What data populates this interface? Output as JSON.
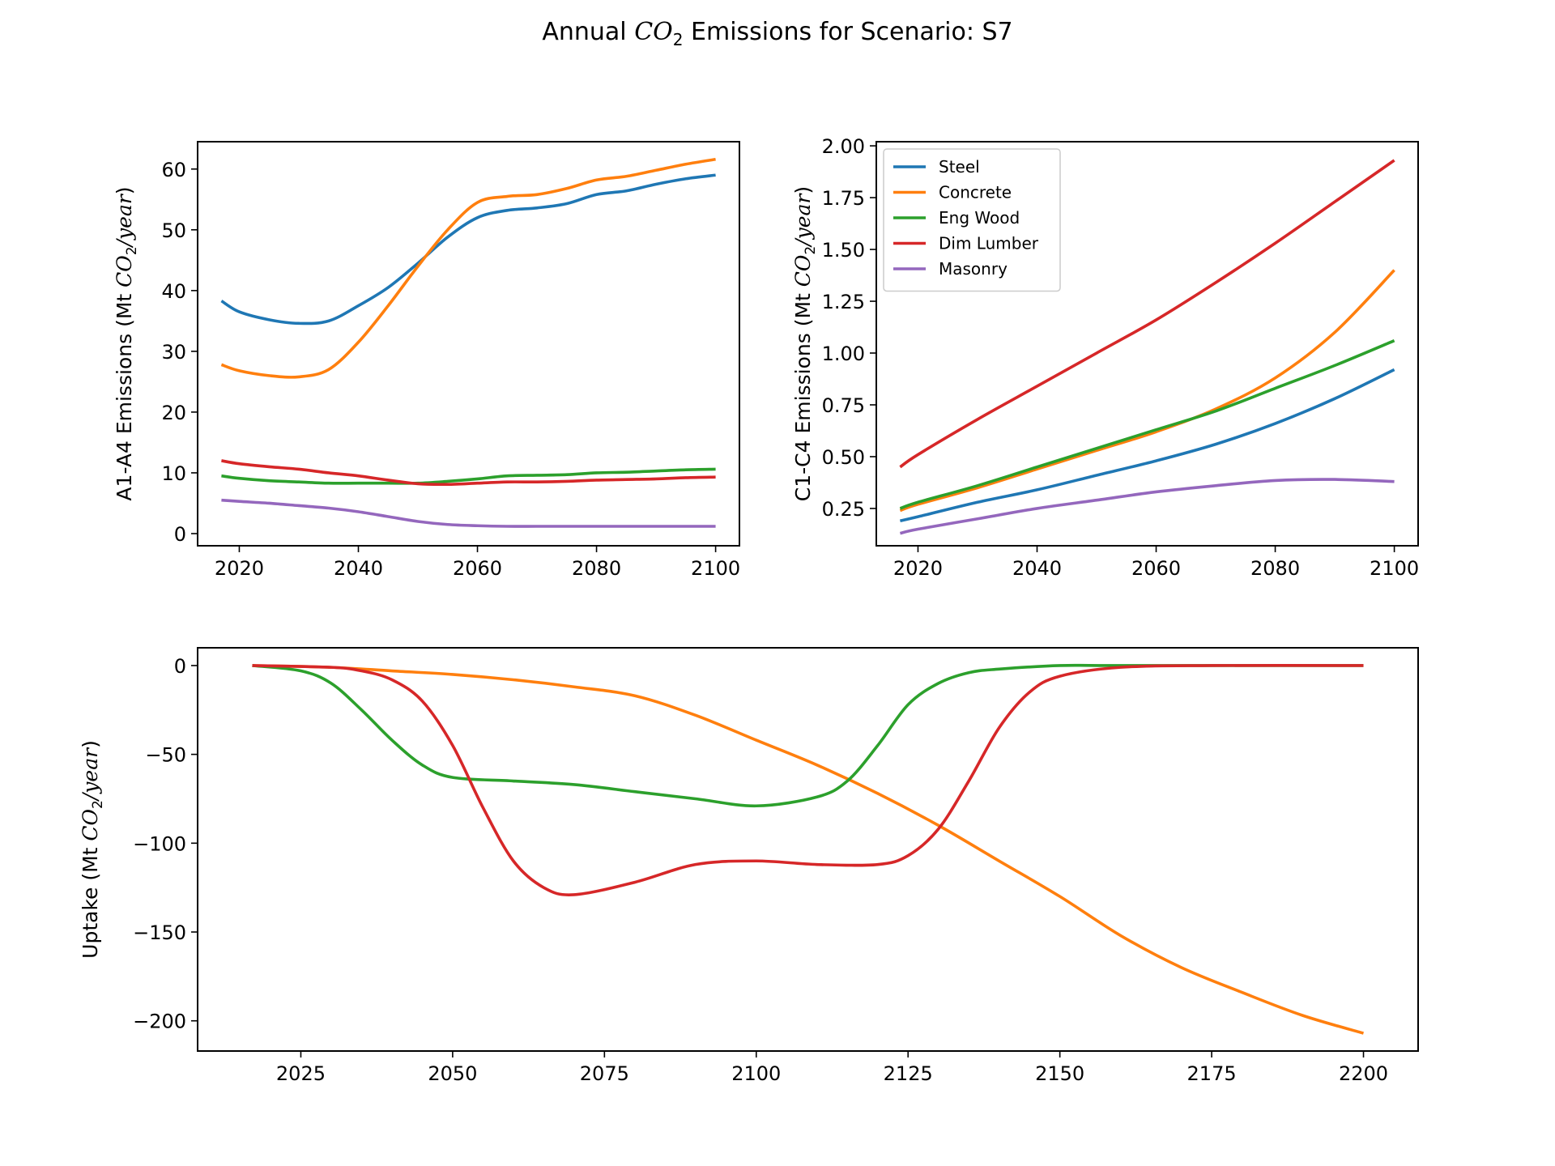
{
  "figure": {
    "title_prefix": "Annual ",
    "title_formula": "CO",
    "title_sub": "2",
    "title_suffix": " Emissions for Scenario: S7"
  },
  "colors": {
    "Steel": "#1f77b4",
    "Concrete": "#ff7f0e",
    "Eng Wood": "#2ca02c",
    "Dim Lumber": "#d62728",
    "Masonry": "#9467bd"
  },
  "chart_data": [
    {
      "type": "line",
      "ylabel": "A1-A4 Emissions (Mt CO2/year)",
      "xlim": [
        2013,
        2104
      ],
      "ylim": [
        -2,
        64.5
      ],
      "xticks": [
        2020,
        2040,
        2060,
        2080,
        2100
      ],
      "yticks": [
        0,
        10,
        20,
        30,
        40,
        50,
        60
      ],
      "ytick_labels": [
        "0",
        "10",
        "20",
        "30",
        "40",
        "50",
        "60"
      ],
      "legend": null,
      "series": [
        {
          "name": "Steel",
          "x": [
            2017,
            2020,
            2025,
            2030,
            2035,
            2040,
            2045,
            2050,
            2055,
            2060,
            2065,
            2070,
            2075,
            2080,
            2085,
            2090,
            2095,
            2100
          ],
          "y": [
            38.3,
            36.5,
            35.2,
            34.6,
            35.0,
            37.5,
            40.5,
            44.5,
            48.8,
            52.0,
            53.2,
            53.6,
            54.3,
            55.8,
            56.4,
            57.5,
            58.4,
            59.0
          ]
        },
        {
          "name": "Concrete",
          "x": [
            2017,
            2020,
            2025,
            2030,
            2035,
            2040,
            2045,
            2050,
            2055,
            2060,
            2065,
            2070,
            2075,
            2080,
            2085,
            2090,
            2095,
            2100
          ],
          "y": [
            27.8,
            26.8,
            26.0,
            25.8,
            27.0,
            31.5,
            37.5,
            44.0,
            50.0,
            54.5,
            55.5,
            55.8,
            56.8,
            58.2,
            58.8,
            59.8,
            60.8,
            61.6
          ]
        },
        {
          "name": "Eng Wood",
          "x": [
            2017,
            2020,
            2025,
            2030,
            2035,
            2040,
            2045,
            2050,
            2055,
            2060,
            2065,
            2070,
            2075,
            2080,
            2085,
            2090,
            2095,
            2100
          ],
          "y": [
            9.5,
            9.1,
            8.7,
            8.5,
            8.3,
            8.3,
            8.3,
            8.3,
            8.6,
            9.0,
            9.5,
            9.6,
            9.7,
            10.0,
            10.1,
            10.3,
            10.5,
            10.6
          ]
        },
        {
          "name": "Dim Lumber",
          "x": [
            2017,
            2020,
            2025,
            2030,
            2035,
            2040,
            2045,
            2050,
            2055,
            2060,
            2065,
            2070,
            2075,
            2080,
            2085,
            2090,
            2095,
            2100
          ],
          "y": [
            12.0,
            11.5,
            11.0,
            10.6,
            10.0,
            9.5,
            8.8,
            8.2,
            8.1,
            8.3,
            8.5,
            8.5,
            8.6,
            8.8,
            8.9,
            9.0,
            9.2,
            9.3
          ]
        },
        {
          "name": "Masonry",
          "x": [
            2017,
            2020,
            2025,
            2030,
            2035,
            2040,
            2045,
            2050,
            2055,
            2060,
            2065,
            2070,
            2075,
            2080,
            2085,
            2090,
            2095,
            2100
          ],
          "y": [
            5.5,
            5.3,
            5.0,
            4.6,
            4.2,
            3.6,
            2.8,
            2.0,
            1.5,
            1.3,
            1.2,
            1.2,
            1.2,
            1.2,
            1.2,
            1.2,
            1.2,
            1.2
          ]
        }
      ]
    },
    {
      "type": "line",
      "ylabel": "C1-C4 Emissions (Mt CO2/year)",
      "xlim": [
        2013,
        2104
      ],
      "ylim": [
        0.07,
        2.02
      ],
      "xticks": [
        2020,
        2040,
        2060,
        2080,
        2100
      ],
      "yticks": [
        0.25,
        0.5,
        0.75,
        1.0,
        1.25,
        1.5,
        1.75,
        2.0
      ],
      "ytick_labels": [
        "0.25",
        "0.50",
        "0.75",
        "1.00",
        "1.25",
        "1.50",
        "1.75",
        "2.00"
      ],
      "legend": "top-left",
      "series": [
        {
          "name": "Steel",
          "x": [
            2017,
            2020,
            2030,
            2040,
            2050,
            2060,
            2070,
            2080,
            2090,
            2100
          ],
          "y": [
            0.19,
            0.21,
            0.28,
            0.34,
            0.41,
            0.48,
            0.56,
            0.66,
            0.78,
            0.92
          ]
        },
        {
          "name": "Concrete",
          "x": [
            2017,
            2020,
            2030,
            2040,
            2050,
            2060,
            2070,
            2080,
            2090,
            2100
          ],
          "y": [
            0.24,
            0.27,
            0.35,
            0.44,
            0.53,
            0.62,
            0.73,
            0.88,
            1.1,
            1.4
          ]
        },
        {
          "name": "Eng Wood",
          "x": [
            2017,
            2020,
            2030,
            2040,
            2050,
            2060,
            2070,
            2080,
            2090,
            2100
          ],
          "y": [
            0.25,
            0.28,
            0.36,
            0.45,
            0.54,
            0.63,
            0.72,
            0.83,
            0.94,
            1.06
          ]
        },
        {
          "name": "Dim Lumber",
          "x": [
            2017,
            2020,
            2030,
            2040,
            2050,
            2060,
            2070,
            2080,
            2090,
            2100
          ],
          "y": [
            0.45,
            0.51,
            0.68,
            0.84,
            1.0,
            1.16,
            1.34,
            1.53,
            1.73,
            1.93
          ]
        },
        {
          "name": "Masonry",
          "x": [
            2017,
            2020,
            2030,
            2040,
            2050,
            2060,
            2070,
            2080,
            2090,
            2100
          ],
          "y": [
            0.13,
            0.15,
            0.2,
            0.25,
            0.29,
            0.33,
            0.36,
            0.385,
            0.39,
            0.38
          ]
        }
      ]
    },
    {
      "type": "line",
      "ylabel": "Uptake (Mt CO2/year)",
      "xlim": [
        2008,
        2209
      ],
      "ylim": [
        -217,
        10
      ],
      "xticks": [
        2025,
        2050,
        2075,
        2100,
        2125,
        2150,
        2175,
        2200
      ],
      "yticks": [
        0,
        -50,
        -100,
        -150,
        -200
      ],
      "ytick_labels": [
        "0",
        "−50",
        "−100",
        "−150",
        "−200"
      ],
      "legend": null,
      "series": [
        {
          "name": "Concrete",
          "x": [
            2017,
            2030,
            2040,
            2050,
            2060,
            2070,
            2080,
            2090,
            2100,
            2110,
            2120,
            2130,
            2140,
            2150,
            2160,
            2170,
            2180,
            2190,
            2200
          ],
          "y": [
            0,
            -1,
            -3,
            -5,
            -8,
            -12,
            -17,
            -28,
            -42,
            -56,
            -72,
            -90,
            -110,
            -130,
            -152,
            -170,
            -184,
            -197,
            -207
          ]
        },
        {
          "name": "Eng Wood",
          "x": [
            2017,
            2025,
            2030,
            2035,
            2040,
            2045,
            2050,
            2060,
            2070,
            2080,
            2090,
            2100,
            2110,
            2115,
            2120,
            2125,
            2130,
            2135,
            2140,
            2150,
            2160,
            2200
          ],
          "y": [
            0,
            -3,
            -10,
            -25,
            -42,
            -56,
            -63,
            -65,
            -67,
            -71,
            -75,
            -79,
            -74,
            -65,
            -45,
            -22,
            -10,
            -4,
            -2,
            0,
            0,
            0
          ]
        },
        {
          "name": "Dim Lumber",
          "x": [
            2017,
            2030,
            2035,
            2040,
            2045,
            2050,
            2055,
            2060,
            2065,
            2070,
            2080,
            2090,
            2100,
            2110,
            2120,
            2125,
            2130,
            2135,
            2140,
            2145,
            2150,
            2160,
            2175,
            2200
          ],
          "y": [
            0,
            -1,
            -3,
            -8,
            -20,
            -45,
            -80,
            -110,
            -125,
            -129,
            -122,
            -112,
            -110,
            -112,
            -112,
            -107,
            -92,
            -65,
            -35,
            -15,
            -6,
            -1,
            0,
            0
          ]
        }
      ]
    }
  ]
}
